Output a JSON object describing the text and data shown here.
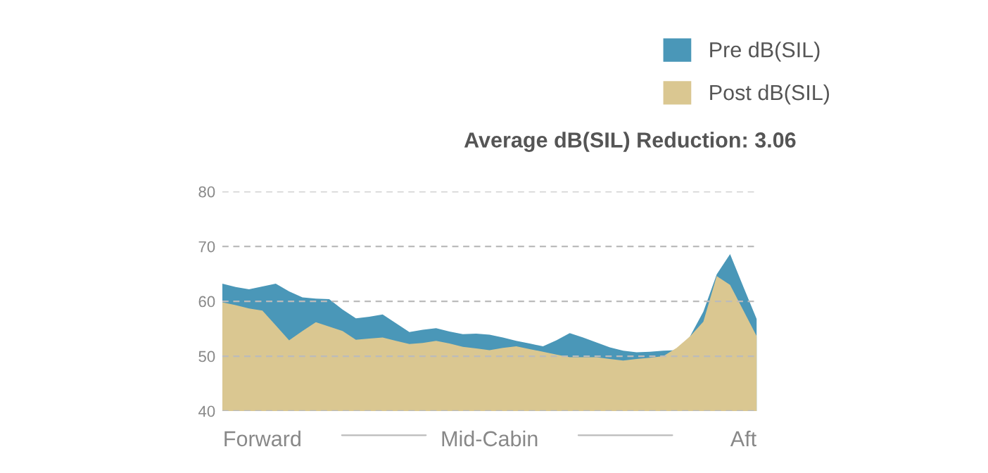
{
  "chart_data": {
    "type": "area",
    "subtitle": "Average dB(SIL) Reduction: 3.06",
    "categories": [
      null,
      null,
      null,
      "Forward",
      null,
      null,
      null,
      null,
      null,
      null,
      null,
      null,
      null,
      null,
      null,
      null,
      null,
      null,
      null,
      null,
      "Mid-Cabin",
      null,
      null,
      null,
      null,
      null,
      null,
      null,
      null,
      null,
      null,
      null,
      null,
      null,
      null,
      null,
      null,
      null,
      null,
      "Aft",
      null
    ],
    "series": [
      {
        "name": "Pre dB(SIL)",
        "color": "#4a97b8",
        "values": [
          63.2,
          62.6,
          62.2,
          62.7,
          63.2,
          61.8,
          60.7,
          60.5,
          60.4,
          58.5,
          56.9,
          57.2,
          57.6,
          56.0,
          54.4,
          54.8,
          55.1,
          54.5,
          54.0,
          54.1,
          53.9,
          53.4,
          52.8,
          52.3,
          51.8,
          52.9,
          54.2,
          53.4,
          52.5,
          51.6,
          51.0,
          50.7,
          50.8,
          51.0,
          51.1,
          53.6,
          58.1,
          64.9,
          68.6,
          62.6,
          56.7
        ]
      },
      {
        "name": "Post dB(SIL)",
        "color": "#dac791",
        "values": [
          59.8,
          59.3,
          58.7,
          58.3,
          55.6,
          52.9,
          54.6,
          56.2,
          55.4,
          54.6,
          53.0,
          53.2,
          53.4,
          52.8,
          52.2,
          52.4,
          52.8,
          52.3,
          51.7,
          51.4,
          51.1,
          51.5,
          51.8,
          51.3,
          50.8,
          50.3,
          49.8,
          49.8,
          49.8,
          49.5,
          49.2,
          49.5,
          49.7,
          50.0,
          51.5,
          53.6,
          56.3,
          64.6,
          63.0,
          58.3,
          53.6
        ]
      }
    ],
    "ylim": [
      40,
      80
    ],
    "yticks": [
      40,
      50,
      60,
      70,
      80
    ],
    "grid": "y",
    "legend": "top right"
  }
}
